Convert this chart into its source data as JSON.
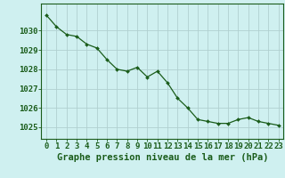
{
  "x": [
    0,
    1,
    2,
    3,
    4,
    5,
    6,
    7,
    8,
    9,
    10,
    11,
    12,
    13,
    14,
    15,
    16,
    17,
    18,
    19,
    20,
    21,
    22,
    23
  ],
  "y": [
    1030.8,
    1030.2,
    1029.8,
    1029.7,
    1029.3,
    1029.1,
    1028.5,
    1028.0,
    1027.9,
    1028.1,
    1027.6,
    1027.9,
    1027.3,
    1026.5,
    1026.0,
    1025.4,
    1025.3,
    1025.2,
    1025.2,
    1025.4,
    1025.5,
    1025.3,
    1025.2,
    1025.1
  ],
  "line_color": "#1a5c1a",
  "marker_color": "#1a5c1a",
  "bg_color": "#cff0f0",
  "grid_color": "#b0d0d0",
  "axis_color": "#1a5c1a",
  "title": "Graphe pression niveau de la mer (hPa)",
  "ylim_min": 1024.4,
  "ylim_max": 1031.4,
  "yticks": [
    1025,
    1026,
    1027,
    1028,
    1029,
    1030
  ],
  "xticks": [
    0,
    1,
    2,
    3,
    4,
    5,
    6,
    7,
    8,
    9,
    10,
    11,
    12,
    13,
    14,
    15,
    16,
    17,
    18,
    19,
    20,
    21,
    22,
    23
  ],
  "title_fontsize": 7.5,
  "tick_fontsize": 6.5
}
